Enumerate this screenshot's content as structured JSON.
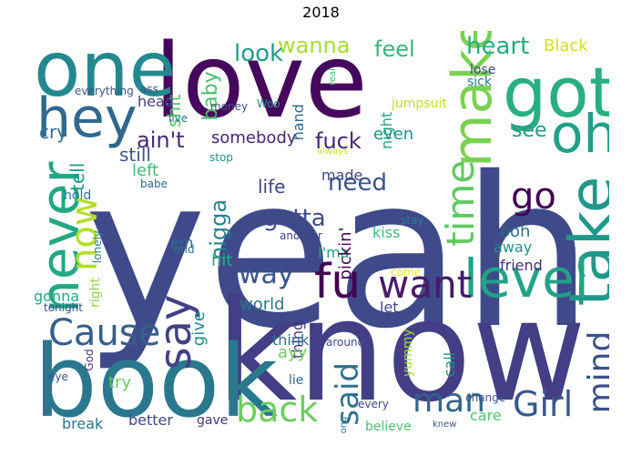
{
  "title": "2018",
  "words": [
    {
      "text": "yeah",
      "color": "#3e4a89"
    },
    {
      "text": "love",
      "color": "#46085c"
    },
    {
      "text": "know",
      "color": "#433e85"
    },
    {
      "text": "book",
      "color": "#2a788e"
    },
    {
      "text": "one",
      "color": "#23898e"
    },
    {
      "text": "got",
      "color": "#29af7f"
    },
    {
      "text": "oh",
      "color": "#1fa187"
    },
    {
      "text": "hey",
      "color": "#31688e"
    },
    {
      "text": "make",
      "color": "#7ad151"
    },
    {
      "text": "take",
      "color": "#1f988b"
    },
    {
      "text": "never",
      "color": "#22a884"
    },
    {
      "text": "level",
      "color": "#20a386"
    },
    {
      "text": "now",
      "color": "#b5de2b"
    },
    {
      "text": "time",
      "color": "#5ec962"
    },
    {
      "text": "say",
      "color": "#424086"
    },
    {
      "text": "fu",
      "color": "#440154"
    },
    {
      "text": "want",
      "color": "#481a6c"
    },
    {
      "text": "Cause",
      "color": "#355f8d"
    },
    {
      "text": "back",
      "color": "#6ccd5a"
    },
    {
      "text": "man",
      "color": "#33638d"
    },
    {
      "text": "Girl",
      "color": "#38588c"
    },
    {
      "text": "mind",
      "color": "#3b528b"
    },
    {
      "text": "said",
      "color": "#2e6f8e"
    },
    {
      "text": "go",
      "color": "#440154"
    },
    {
      "text": "way",
      "color": "#39558c"
    },
    {
      "text": "gotta",
      "color": "#3e4c8a"
    },
    {
      "text": "need",
      "color": "#3b528b"
    },
    {
      "text": "fuck",
      "color": "#482475"
    },
    {
      "text": "ain't",
      "color": "#482878"
    },
    {
      "text": "nigga",
      "color": "#26828e"
    },
    {
      "text": "heart",
      "color": "#27ad81"
    },
    {
      "text": "feel",
      "color": "#35b779"
    },
    {
      "text": "wanna",
      "color": "#a8db34"
    },
    {
      "text": "look",
      "color": "#1f9e89"
    },
    {
      "text": "see",
      "color": "#1e9b8a"
    },
    {
      "text": "Black",
      "color": "#d0e11c"
    },
    {
      "text": "baby",
      "color": "#4ac16d"
    },
    {
      "text": "shit",
      "color": "#52c569"
    },
    {
      "text": "somebody",
      "color": "#482173"
    },
    {
      "text": "still",
      "color": "#3b528b"
    },
    {
      "text": "left",
      "color": "#3dbc74"
    },
    {
      "text": "cry",
      "color": "#2c728e"
    },
    {
      "text": "head",
      "color": "#433d84"
    },
    {
      "text": "tell",
      "color": "#1f9a8a"
    },
    {
      "text": "hand",
      "color": "#31688e"
    },
    {
      "text": "even",
      "color": "#1f968b"
    },
    {
      "text": "night",
      "color": "#20a486"
    },
    {
      "text": "made",
      "color": "#404688"
    },
    {
      "text": "life",
      "color": "#414487"
    },
    {
      "text": "ooh",
      "color": "#2d708e"
    },
    {
      "text": "away",
      "color": "#21918c"
    },
    {
      "text": "kiss",
      "color": "#3aba76"
    },
    {
      "text": "I'ma",
      "color": "#20a386"
    },
    {
      "text": "pickin'",
      "color": "#440154"
    },
    {
      "text": "friend",
      "color": "#472d7b"
    },
    {
      "text": "em",
      "color": "#30678d"
    },
    {
      "text": "hit",
      "color": "#27ad81"
    },
    {
      "text": "give",
      "color": "#23898e"
    },
    {
      "text": "gonna",
      "color": "#22a884"
    },
    {
      "text": "world",
      "color": "#2a778e"
    },
    {
      "text": "thing",
      "color": "#472d7b"
    },
    {
      "text": "let",
      "color": "#414487"
    },
    {
      "text": "think",
      "color": "#2e6e8e"
    },
    {
      "text": "ayy",
      "color": "#6ccd5a"
    },
    {
      "text": "around",
      "color": "#3e4c8a"
    },
    {
      "text": "call",
      "color": "#20928c"
    },
    {
      "text": "yummy",
      "color": "#a2da37"
    },
    {
      "text": "lie",
      "color": "#31668e"
    },
    {
      "text": "try",
      "color": "#63cb5f"
    },
    {
      "text": "better",
      "color": "#3e4989"
    },
    {
      "text": "gave",
      "color": "#463480"
    },
    {
      "text": "break",
      "color": "#2c738e"
    },
    {
      "text": "eye",
      "color": "#3b528b"
    },
    {
      "text": "God",
      "color": "#46327e"
    },
    {
      "text": "right",
      "color": "#8bd646"
    },
    {
      "text": "lonely",
      "color": "#277f8e"
    },
    {
      "text": "tonight",
      "color": "#3e4a89"
    },
    {
      "text": "hold",
      "color": "#2a768e"
    },
    {
      "text": "babe",
      "color": "#31688e"
    },
    {
      "text": "end",
      "color": "#2c718e"
    },
    {
      "text": "stop",
      "color": "#21918c"
    },
    {
      "text": "always",
      "color": "#d2e21b"
    },
    {
      "text": "another",
      "color": "#414487"
    },
    {
      "text": "stay",
      "color": "#26828e"
    },
    {
      "text": "come",
      "color": "#f1e51d"
    },
    {
      "text": "jumpsuit",
      "color": "#c0df25"
    },
    {
      "text": "money",
      "color": "#3b528b"
    },
    {
      "text": "Woo",
      "color": "#24868e"
    },
    {
      "text": "live",
      "color": "#2c718e"
    },
    {
      "text": "everything",
      "color": "#3b528b"
    },
    {
      "text": "ass",
      "color": "#3a548c"
    },
    {
      "text": "real",
      "color": "#3dbc74"
    },
    {
      "text": "lose",
      "color": "#3f4788"
    },
    {
      "text": "sick",
      "color": "#2a778e"
    },
    {
      "text": "change",
      "color": "#39568c"
    },
    {
      "text": "care",
      "color": "#4ec36b"
    },
    {
      "text": "believe",
      "color": "#4ec36b"
    },
    {
      "text": "every",
      "color": "#3f4788"
    },
    {
      "text": "knew",
      "color": "#39558c"
    },
    {
      "text": "long",
      "color": "#26828e"
    }
  ]
}
